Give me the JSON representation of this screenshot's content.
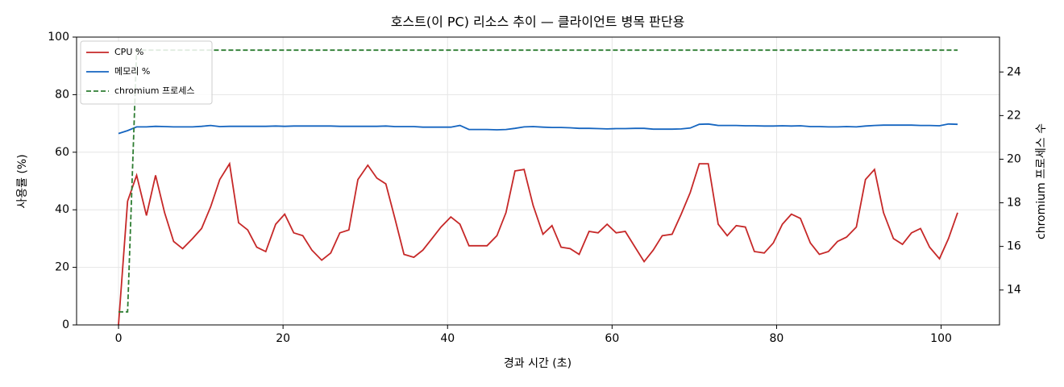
{
  "chart_data": {
    "type": "line",
    "title": "호스트(이 PC) 리소스 추이 — 클라이언트 병목 판단용",
    "x_label": "경과 시간 (초)",
    "y_label": "사용률 (%)",
    "y2_label": "chromium 프로세스 수",
    "x": [
      0,
      1.1,
      2.2,
      3.4,
      4.5,
      5.6,
      6.7,
      7.8,
      9.0,
      10.1,
      11.2,
      12.3,
      13.5,
      14.6,
      15.7,
      16.8,
      17.9,
      19.1,
      20.2,
      21.3,
      22.4,
      23.5,
      24.7,
      25.8,
      26.9,
      28.0,
      29.1,
      30.3,
      31.4,
      32.5,
      33.6,
      34.7,
      35.9,
      37.0,
      38.1,
      39.2,
      40.4,
      41.5,
      42.6,
      43.7,
      44.8,
      46.0,
      47.1,
      48.2,
      49.3,
      50.4,
      51.6,
      52.7,
      53.8,
      54.9,
      56.0,
      57.2,
      58.3,
      59.4,
      60.5,
      61.6,
      62.8,
      63.9,
      65.0,
      66.1,
      67.3,
      68.4,
      69.5,
      70.6,
      71.7,
      72.9,
      74.0,
      75.1,
      76.2,
      77.3,
      78.5,
      79.6,
      80.7,
      81.8,
      82.9,
      84.1,
      85.2,
      86.3,
      87.4,
      88.5,
      89.7,
      90.8,
      91.9,
      93.0,
      94.2,
      95.3,
      96.4,
      97.5,
      98.6,
      99.8,
      100.9,
      102.0
    ],
    "series": [
      {
        "name": "CPU %",
        "color": "#c62828",
        "dash": false,
        "values": [
          0,
          43,
          52,
          38,
          52,
          39,
          29,
          26.5,
          30,
          33.5,
          41,
          50.5,
          56,
          35.5,
          33,
          27,
          25.5,
          35,
          38.5,
          32,
          31,
          26,
          22.5,
          25,
          32,
          33,
          50.5,
          55.5,
          51,
          49,
          37,
          24.5,
          23.5,
          26,
          30,
          34,
          37.5,
          35,
          27.5,
          27.5,
          27.5,
          31,
          39,
          53.5,
          54,
          41.5,
          31.5,
          34.5,
          27,
          26.5,
          24.5,
          32.5,
          32,
          35,
          32,
          32.5,
          27,
          22,
          26,
          31,
          31.5,
          38.5,
          46,
          56,
          56,
          35,
          31,
          34.5,
          34,
          25.5,
          25,
          28.5,
          35,
          38.5,
          37,
          28.5,
          24.5,
          25.5,
          29,
          30.5,
          34,
          50.5,
          54,
          39,
          30,
          28,
          32,
          33.5,
          27,
          23,
          30,
          39
        ]
      },
      {
        "name": "메모리 %",
        "color": "#1565c0",
        "dash": false,
        "values": [
          66.5,
          67.5,
          68.8,
          68.8,
          69,
          68.9,
          68.8,
          68.8,
          68.8,
          69,
          69.3,
          68.9,
          69,
          69,
          69,
          69,
          69,
          69.1,
          69,
          69.1,
          69.1,
          69.1,
          69.1,
          69.1,
          69,
          69,
          69,
          69,
          69,
          69.1,
          68.9,
          68.9,
          68.9,
          68.7,
          68.7,
          68.7,
          68.7,
          69.3,
          67.9,
          67.9,
          67.9,
          67.8,
          67.9,
          68.3,
          68.8,
          68.9,
          68.7,
          68.6,
          68.6,
          68.5,
          68.3,
          68.3,
          68.2,
          68.1,
          68.2,
          68.2,
          68.3,
          68.3,
          68,
          68,
          68,
          68.1,
          68.4,
          69.7,
          69.8,
          69.3,
          69.3,
          69.3,
          69.2,
          69.2,
          69.1,
          69.1,
          69.2,
          69.1,
          69.2,
          68.9,
          68.9,
          68.8,
          68.8,
          68.9,
          68.8,
          69.1,
          69.3,
          69.4,
          69.4,
          69.4,
          69.4,
          69.3,
          69.3,
          69.2,
          69.8,
          69.7
        ]
      },
      {
        "name": "chromium 프로세스",
        "color": "#2e7d32",
        "dash": true,
        "axis": "y2",
        "values": [
          13,
          13,
          25,
          25,
          25,
          25,
          25,
          25,
          25,
          25,
          25,
          25,
          25,
          25,
          25,
          25,
          25,
          25,
          25,
          25,
          25,
          25,
          25,
          25,
          25,
          25,
          25,
          25,
          25,
          25,
          25,
          25,
          25,
          25,
          25,
          25,
          25,
          25,
          25,
          25,
          25,
          25,
          25,
          25,
          25,
          25,
          25,
          25,
          25,
          25,
          25,
          25,
          25,
          25,
          25,
          25,
          25,
          25,
          25,
          25,
          25,
          25,
          25,
          25,
          25,
          25,
          25,
          25,
          25,
          25,
          25,
          25,
          25,
          25,
          25,
          25,
          25,
          25,
          25,
          25,
          25,
          25,
          25,
          25,
          25,
          25,
          25,
          25,
          25,
          25,
          25,
          25
        ]
      }
    ],
    "xlim": [
      -5.1,
      107.1
    ],
    "xticks": [
      0,
      20,
      40,
      60,
      80,
      100
    ],
    "ylim": [
      0,
      100
    ],
    "yticks": [
      0,
      20,
      40,
      60,
      80,
      100
    ],
    "y2lim": [
      12.4,
      25.6
    ],
    "y2ticks": [
      14,
      16,
      18,
      20,
      22,
      24
    ],
    "grid": true,
    "legend": "upper left"
  }
}
